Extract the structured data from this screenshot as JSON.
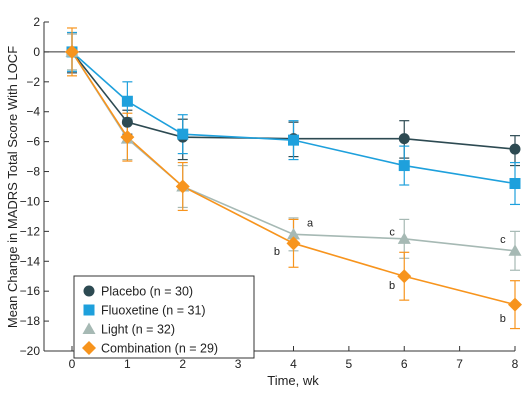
{
  "chart_data": {
    "type": "line",
    "xlabel": "Time, wk",
    "ylabel": "Mean Change in MADRS Total Score With LOCF",
    "xlim": [
      -0.3,
      8
    ],
    "ylim": [
      -20,
      2
    ],
    "x_ticks": [
      "0",
      "1",
      "2",
      "3",
      "4",
      "5",
      "6",
      "7",
      "8"
    ],
    "y_ticks": [
      "2",
      "0",
      "−2",
      "−4",
      "−6",
      "−8",
      "−10",
      "−12",
      "−14",
      "−16",
      "−18",
      "−20"
    ],
    "x_tick_values": [
      0,
      1,
      2,
      3,
      4,
      5,
      6,
      7,
      8
    ],
    "y_tick_values": [
      2,
      0,
      -2,
      -4,
      -6,
      -8,
      -10,
      -12,
      -14,
      -16,
      -18,
      -20
    ],
    "grid": false,
    "reference_line": 0,
    "legend_position": "bottom-left",
    "series": [
      {
        "name": "Placebo (n = 30)",
        "color": "#2d4a52",
        "marker": "circle",
        "x": [
          0,
          1,
          2,
          4,
          6,
          8
        ],
        "y": [
          0,
          -4.7,
          -5.7,
          -5.8,
          -5.8,
          -6.5
        ],
        "err_low": [
          -1.4,
          -5.5,
          -7.2,
          -7.0,
          -7.1,
          -7.6
        ],
        "err_high": [
          1.2,
          -3.9,
          -4.5,
          -4.7,
          -4.6,
          -5.6
        ]
      },
      {
        "name": "Fluoxetine (n = 31)",
        "color": "#1ea0dc",
        "marker": "square",
        "x": [
          0,
          1,
          2,
          4,
          6,
          8
        ],
        "y": [
          0,
          -3.3,
          -5.5,
          -5.9,
          -7.6,
          -8.8
        ],
        "err_low": [
          -1.3,
          -4.5,
          -6.8,
          -7.2,
          -8.9,
          -10.2
        ],
        "err_high": [
          1.3,
          -2.0,
          -4.2,
          -4.6,
          -6.3,
          -7.4
        ]
      },
      {
        "name": "Light (n = 32)",
        "color": "#a6b9b4",
        "marker": "triangle",
        "x": [
          0,
          1,
          2,
          4,
          6,
          8
        ],
        "y": [
          0,
          -5.8,
          -9.0,
          -12.2,
          -12.5,
          -13.3
        ],
        "err_low": [
          -1.2,
          -7.2,
          -10.4,
          -13.3,
          -13.8,
          -14.6
        ],
        "err_high": [
          1.2,
          -4.4,
          -7.6,
          -11.1,
          -11.2,
          -12.0
        ]
      },
      {
        "name": "Combination (n = 29)",
        "color": "#f7941d",
        "marker": "diamond",
        "x": [
          0,
          1,
          2,
          4,
          6,
          8
        ],
        "y": [
          0,
          -5.7,
          -9.0,
          -12.8,
          -15.0,
          -16.9
        ],
        "err_low": [
          -1.6,
          -7.3,
          -10.6,
          -14.4,
          -16.6,
          -18.5
        ],
        "err_high": [
          1.6,
          -4.1,
          -7.4,
          -11.2,
          -13.4,
          -15.3
        ]
      }
    ],
    "annotations": [
      {
        "text": "a",
        "x": 4.3,
        "y": -11.4
      },
      {
        "text": "b",
        "x": 3.7,
        "y": -13.3
      },
      {
        "text": "c",
        "x": 5.78,
        "y": -12.0
      },
      {
        "text": "b",
        "x": 5.78,
        "y": -15.6
      },
      {
        "text": "c",
        "x": 7.78,
        "y": -12.5
      },
      {
        "text": "b",
        "x": 7.78,
        "y": -17.8
      }
    ]
  }
}
